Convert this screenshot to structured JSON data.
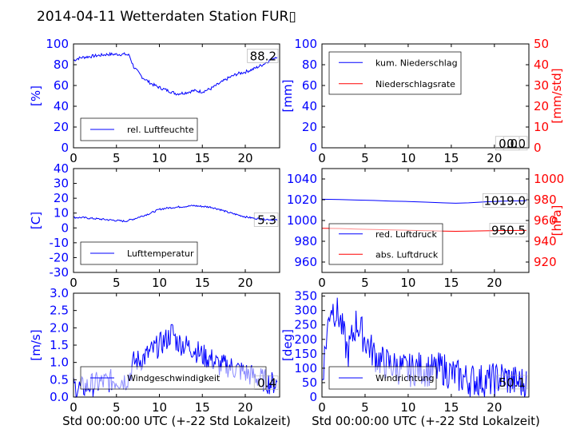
{
  "title": "2014-04-11 Wetterdaten Station FUR▯",
  "xlabel": "Std 00:00:00 UTC (+-22 Std Lokalzeit)",
  "colors": {
    "primary": "#0000ff",
    "secondary": "#ff0000",
    "axis": "#000000"
  },
  "chart_data": [
    {
      "id": "humidity",
      "type": "line",
      "xlim": [
        0,
        24
      ],
      "xticks": [
        0,
        5,
        10,
        15,
        20
      ],
      "ylim": [
        0,
        100
      ],
      "yticks": [
        0,
        20,
        40,
        60,
        80,
        100
      ],
      "ylabel": "[%]",
      "legend_loc": "lower-left",
      "annotation": "88.2",
      "series": [
        {
          "name": "rel. Luftfeuchte",
          "color": "#0000ff",
          "x": [
            0,
            0.5,
            1,
            2,
            3,
            4,
            5,
            5.5,
            6,
            6.5,
            7,
            8,
            9,
            10,
            11,
            12,
            13,
            14,
            15,
            16,
            17,
            18,
            19,
            20,
            21,
            22,
            23,
            23.7
          ],
          "y": [
            84,
            86,
            87,
            88,
            89,
            90,
            90,
            90,
            90,
            89,
            78,
            68,
            62,
            58,
            55,
            52,
            53,
            55,
            54,
            57,
            62,
            67,
            71,
            73,
            76,
            80,
            85,
            88.2
          ],
          "noise": 1.5
        }
      ]
    },
    {
      "id": "precip",
      "type": "line",
      "xlim": [
        0,
        24
      ],
      "xticks": [
        0,
        5,
        10,
        15,
        20
      ],
      "ylim": [
        0,
        100
      ],
      "yticks": [
        0,
        20,
        40,
        60,
        80,
        100
      ],
      "ylabel": "[mm]",
      "y2lim": [
        0,
        50
      ],
      "y2ticks": [
        0,
        10,
        20,
        30,
        40,
        50
      ],
      "y2label": "[mm/std]",
      "legend_loc": "upper-left",
      "annotation": "0.0",
      "annotation2": "0.0",
      "series": [
        {
          "name": "kum. Niederschlag",
          "color": "#0000ff",
          "x": [
            0,
            24
          ],
          "y": [
            0,
            0
          ],
          "axis": "left"
        },
        {
          "name": "Niederschlagsrate",
          "color": "#ff0000",
          "x": [
            0,
            24
          ],
          "y": [
            0,
            0
          ],
          "axis": "right"
        }
      ]
    },
    {
      "id": "temp",
      "type": "line",
      "xlim": [
        0,
        24
      ],
      "xticks": [
        0,
        5,
        10,
        15,
        20
      ],
      "ylim": [
        -30,
        40
      ],
      "yticks": [
        -30,
        -20,
        -10,
        0,
        10,
        20,
        30,
        40
      ],
      "ylabel": "[C]",
      "legend_loc": "lower-left",
      "annotation": "5.3",
      "series": [
        {
          "name": "Lufttemperatur",
          "color": "#0000ff",
          "x": [
            0,
            1,
            2,
            3,
            4,
            5,
            6,
            7,
            8,
            9,
            10,
            11,
            12,
            13,
            14,
            15,
            16,
            17,
            18,
            19,
            20,
            21,
            22,
            23.7
          ],
          "y": [
            7,
            7,
            6.5,
            6,
            5.5,
            5,
            4.5,
            6,
            8,
            10,
            12.5,
            13.5,
            14,
            14.5,
            15,
            14.5,
            14,
            12.5,
            10.5,
            9,
            7.5,
            6.5,
            6,
            5.3
          ],
          "noise": 0.6
        }
      ]
    },
    {
      "id": "pressure",
      "type": "line",
      "xlim": [
        0,
        24
      ],
      "xticks": [
        0,
        5,
        10,
        15,
        20
      ],
      "ylim": [
        950,
        1050
      ],
      "yticks": [
        960,
        980,
        1000,
        1020,
        1040
      ],
      "ylabel": "",
      "y2lim": [
        910,
        1010
      ],
      "y2ticks": [
        920,
        940,
        960,
        980,
        1000
      ],
      "y2label": "[hPa]",
      "legend_loc": "lower-left",
      "annotation": "1019.0",
      "annotation2": "950.5",
      "series": [
        {
          "name": "red. Luftdruck",
          "color": "#0000ff",
          "x": [
            0,
            2,
            4,
            6,
            8,
            10,
            12,
            14,
            15.5,
            17,
            19,
            21,
            23.7
          ],
          "y": [
            1020.5,
            1020.2,
            1019.7,
            1019.3,
            1018.7,
            1018.3,
            1017.7,
            1017.0,
            1016.6,
            1017.0,
            1018.0,
            1018.7,
            1019.0
          ],
          "axis": "left"
        },
        {
          "name": "abs. Luftdruck",
          "color": "#ff0000",
          "x": [
            0,
            2,
            4,
            6,
            8,
            10,
            12,
            14,
            15.5,
            17,
            19,
            21,
            23.7
          ],
          "y": [
            952.5,
            952.3,
            951.8,
            951.4,
            951.0,
            950.6,
            950.2,
            949.8,
            949.6,
            949.8,
            950.1,
            950.4,
            950.5
          ],
          "axis": "right"
        }
      ]
    },
    {
      "id": "wind_speed",
      "type": "line",
      "xlim": [
        0,
        24
      ],
      "xticks": [
        0,
        5,
        10,
        15,
        20
      ],
      "ylim": [
        0,
        3.0
      ],
      "yticks": [
        0.0,
        0.5,
        1.0,
        1.5,
        2.0,
        2.5,
        3.0
      ],
      "ylabel": "[m/s]",
      "legend_loc": "lower-left",
      "annotation": "0.4",
      "series": [
        {
          "name": "Windgeschwindigkeit",
          "color": "#0000ff",
          "x": [
            0,
            1,
            2,
            3,
            4,
            5,
            6,
            6.5,
            7,
            8,
            9,
            10,
            11,
            11.5,
            12,
            13,
            14,
            15,
            16,
            17,
            18,
            19,
            20,
            21,
            22,
            23,
            23.7
          ],
          "y": [
            0.3,
            0.25,
            0.35,
            0.4,
            0.45,
            0.5,
            0.5,
            0.6,
            1.0,
            1.1,
            1.3,
            1.5,
            1.7,
            1.9,
            1.6,
            1.5,
            1.4,
            1.2,
            1.1,
            0.9,
            0.9,
            0.8,
            0.7,
            0.6,
            0.5,
            0.4,
            0.4
          ],
          "noise": 0.35
        }
      ]
    },
    {
      "id": "wind_dir",
      "type": "line",
      "xlim": [
        0,
        24
      ],
      "xticks": [
        0,
        5,
        10,
        15,
        20
      ],
      "ylim": [
        0,
        360
      ],
      "yticks": [
        0,
        50,
        100,
        150,
        200,
        250,
        300,
        350
      ],
      "ylabel": "[deg]",
      "legend_loc": "lower-left",
      "annotation": "50.1",
      "series": [
        {
          "name": "Windrichtung",
          "color": "#0000ff",
          "x": [
            0,
            0.5,
            1,
            1.5,
            2,
            3,
            4,
            5,
            6,
            7,
            8,
            9,
            10,
            11,
            12,
            13,
            14,
            15,
            16,
            17,
            18,
            19,
            20,
            21,
            22,
            23,
            23.7
          ],
          "y": [
            60,
            200,
            320,
            300,
            280,
            150,
            260,
            200,
            150,
            120,
            110,
            100,
            90,
            100,
            95,
            90,
            100,
            80,
            70,
            60,
            60,
            55,
            60,
            70,
            55,
            50,
            50.1
          ],
          "noise": 60
        }
      ]
    }
  ]
}
